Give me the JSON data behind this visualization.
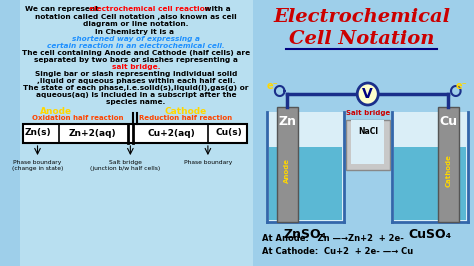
{
  "bg_color": "#9ECFEA",
  "title_line1": "Electrochemical",
  "title_line2": "Cell Notation",
  "title_color": "#CC0000",
  "title_underline_color": "#000080",
  "left_bg": "#ADD8E6",
  "text_color": "#000000",
  "red_color": "#FF0000",
  "blue_color": "#4169E1",
  "gold_color": "#FFD700",
  "orange_red": "#FF4500",
  "notation_box_bg": "#FFFFFF",
  "diagram": {
    "beaker_fill": "#7BC8E8",
    "beaker_outline": "#3366AA",
    "electrode_fill": "#909090",
    "electrode_outline": "#555555",
    "salt_bridge_fill": "#C8C8C8",
    "salt_bridge_outline": "#888888",
    "wire_color": "#1A2F8A",
    "voltmeter_fill": "#FFFFCC",
    "voltmeter_outline": "#1A2F8A",
    "water_color": "#5BB8D4",
    "znso4_color": "#000000",
    "cuso4_color": "#000000",
    "salt_bridge_text_color": "#CC0000",
    "nacl_color": "#000000",
    "electrode_text_color": "#FFFFFF",
    "anode_rotated_color": "#FFD700",
    "cathode_rotated_color": "#FFD700",
    "zn_label": "Zn",
    "cu_label": "Cu",
    "znso4_label": "ZnSO₄",
    "cuso4_label": "CuSO₄",
    "anode_text": "Anode",
    "cathode_text": "Cathode",
    "salt_bridge_text": "Salt bridge",
    "nacl_text": "NaCl",
    "voltmeter_text": "V",
    "electron_color": "#FFD700",
    "at_anode": "At Anode:   Zn —→Zn+2  + 2e-",
    "at_cathode": "At Cathode:  Cu+2  + 2e- —→ Cu"
  }
}
